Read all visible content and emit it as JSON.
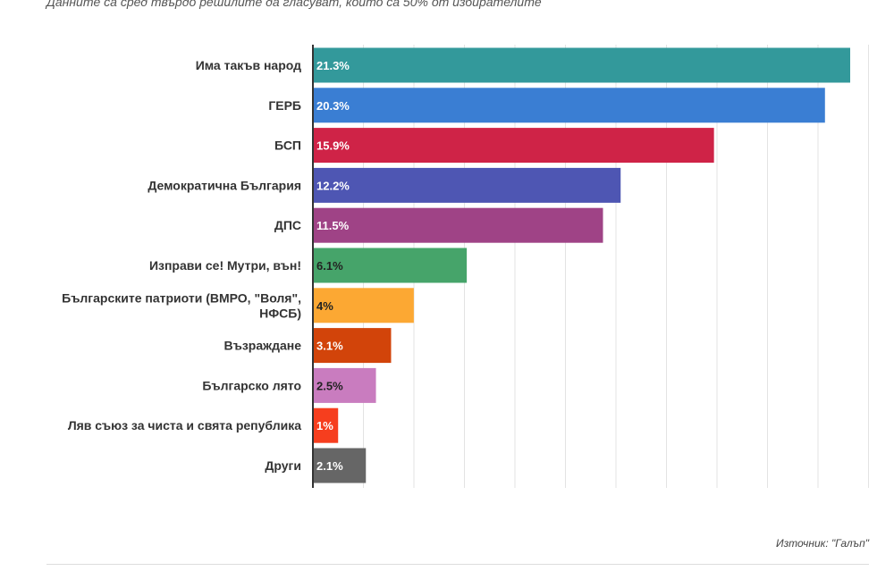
{
  "subtitle": "Данните са сред твърдо решилите да гласуват, които са 50% от избирателите",
  "source": "Източник: \"Галъп\"",
  "chart_data": {
    "type": "bar",
    "orientation": "horizontal",
    "categories": [
      "Има такъв народ",
      "ГЕРБ",
      "БСП",
      "Демократична България",
      "ДПС",
      "Изправи се! Мутри, вън!",
      "Българските патриоти (ВМРО, \"Воля\", НФСБ)",
      "Възраждане",
      "Българско лято",
      "Ляв съюз за чиста и свята република",
      "Други"
    ],
    "category_lines": [
      [
        "Има такъв народ"
      ],
      [
        "ГЕРБ"
      ],
      [
        "БСП"
      ],
      [
        "Демократична България"
      ],
      [
        "ДПС"
      ],
      [
        "Изправи се! Мутри, вън!"
      ],
      [
        "Българските патриоти (ВМРО, \"Воля\",",
        "НФСБ)"
      ],
      [
        "Възраждане"
      ],
      [
        "Българско лято"
      ],
      [
        "Ляв съюз за чиста и свята република"
      ],
      [
        "Други"
      ]
    ],
    "values": [
      21.3,
      20.3,
      15.9,
      12.2,
      11.5,
      6.1,
      4,
      3.1,
      2.5,
      1,
      2.1
    ],
    "value_labels": [
      "21.3%",
      "20.3%",
      "15.9%",
      "12.2%",
      "11.5%",
      "6.1%",
      "4%",
      "3.1%",
      "2.5%",
      "1%",
      "2.1%"
    ],
    "colors": [
      "#33999b",
      "#3a7ed3",
      "#cf2347",
      "#4e56b3",
      "#9f4386",
      "#46a46a",
      "#fca833",
      "#d2440a",
      "#c97cbf",
      "#f63e1e",
      "#666666"
    ],
    "label_colors": [
      "#ffffff",
      "#ffffff",
      "#ffffff",
      "#ffffff",
      "#ffffff",
      "#222222",
      "#222222",
      "#ffffff",
      "#222222",
      "#ffffff",
      "#ffffff"
    ],
    "xlim": [
      0,
      22
    ],
    "grid": true,
    "gridline_color": "#e3e3e3",
    "axis_color": "#333333"
  }
}
